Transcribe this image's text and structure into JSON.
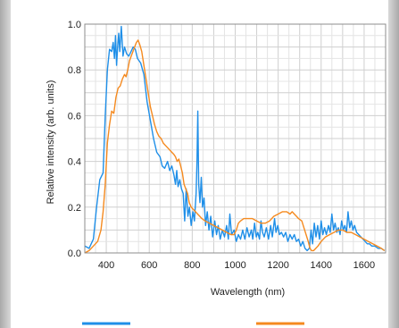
{
  "chart_data": {
    "type": "line",
    "title": "",
    "xlabel": "Wavelength (nm)",
    "ylabel": "Relative intensity (arb. units)",
    "xlim": [
      300,
      1700
    ],
    "ylim": [
      0,
      1.0
    ],
    "x_ticks": [
      400,
      600,
      800,
      1000,
      1200,
      1400,
      1600
    ],
    "y_ticks": [
      0.0,
      0.2,
      0.4,
      0.6,
      0.8,
      1.0
    ],
    "x_tick_labels": [
      "400",
      "600",
      "800",
      "1000",
      "1200",
      "1400",
      "1600"
    ],
    "y_tick_labels": [
      "0.0",
      "0.2",
      "0.4",
      "0.6",
      "0.8",
      "1.0"
    ],
    "grid": true,
    "legend": "bottom",
    "series": [
      {
        "color": "#1f8fe8",
        "points": [
          [
            300,
            0.03
          ],
          [
            320,
            0.02
          ],
          [
            340,
            0.06
          ],
          [
            355,
            0.2
          ],
          [
            370,
            0.32
          ],
          [
            385,
            0.35
          ],
          [
            395,
            0.6
          ],
          [
            405,
            0.8
          ],
          [
            415,
            0.89
          ],
          [
            425,
            0.88
          ],
          [
            432,
            0.92
          ],
          [
            438,
            0.85
          ],
          [
            443,
            0.95
          ],
          [
            448,
            0.82
          ],
          [
            453,
            0.9
          ],
          [
            458,
            0.96
          ],
          [
            463,
            0.88
          ],
          [
            470,
            0.99
          ],
          [
            478,
            0.86
          ],
          [
            485,
            0.9
          ],
          [
            495,
            0.87
          ],
          [
            505,
            0.86
          ],
          [
            515,
            0.88
          ],
          [
            525,
            0.9
          ],
          [
            535,
            0.89
          ],
          [
            545,
            0.85
          ],
          [
            560,
            0.83
          ],
          [
            575,
            0.78
          ],
          [
            590,
            0.66
          ],
          [
            605,
            0.58
          ],
          [
            620,
            0.5
          ],
          [
            635,
            0.44
          ],
          [
            650,
            0.42
          ],
          [
            660,
            0.38
          ],
          [
            672,
            0.37
          ],
          [
            685,
            0.4
          ],
          [
            695,
            0.36
          ],
          [
            705,
            0.38
          ],
          [
            715,
            0.34
          ],
          [
            722,
            0.3
          ],
          [
            728,
            0.36
          ],
          [
            734,
            0.29
          ],
          [
            742,
            0.32
          ],
          [
            750,
            0.28
          ],
          [
            758,
            0.26
          ],
          [
            765,
            0.14
          ],
          [
            772,
            0.28
          ],
          [
            780,
            0.16
          ],
          [
            787,
            0.2
          ],
          [
            795,
            0.12
          ],
          [
            803,
            0.18
          ],
          [
            810,
            0.14
          ],
          [
            818,
            0.26
          ],
          [
            822,
            0.4
          ],
          [
            826,
            0.62
          ],
          [
            830,
            0.3
          ],
          [
            836,
            0.22
          ],
          [
            842,
            0.33
          ],
          [
            848,
            0.2
          ],
          [
            855,
            0.24
          ],
          [
            862,
            0.12
          ],
          [
            870,
            0.18
          ],
          [
            878,
            0.1
          ],
          [
            886,
            0.16
          ],
          [
            895,
            0.07
          ],
          [
            905,
            0.14
          ],
          [
            913,
            0.08
          ],
          [
            921,
            0.12
          ],
          [
            930,
            0.06
          ],
          [
            940,
            0.1
          ],
          [
            950,
            0.07
          ],
          [
            960,
            0.12
          ],
          [
            968,
            0.06
          ],
          [
            975,
            0.17
          ],
          [
            983,
            0.08
          ],
          [
            995,
            0.1
          ],
          [
            1005,
            0.05
          ],
          [
            1015,
            0.08
          ],
          [
            1025,
            0.06
          ],
          [
            1035,
            0.1
          ],
          [
            1045,
            0.06
          ],
          [
            1055,
            0.11
          ],
          [
            1065,
            0.07
          ],
          [
            1075,
            0.1
          ],
          [
            1082,
            0.06
          ],
          [
            1090,
            0.13
          ],
          [
            1098,
            0.07
          ],
          [
            1105,
            0.09
          ],
          [
            1113,
            0.06
          ],
          [
            1120,
            0.14
          ],
          [
            1127,
            0.09
          ],
          [
            1135,
            0.07
          ],
          [
            1145,
            0.11
          ],
          [
            1155,
            0.06
          ],
          [
            1165,
            0.12
          ],
          [
            1173,
            0.07
          ],
          [
            1183,
            0.15
          ],
          [
            1190,
            0.09
          ],
          [
            1198,
            0.12
          ],
          [
            1206,
            0.08
          ],
          [
            1215,
            0.09
          ],
          [
            1225,
            0.07
          ],
          [
            1235,
            0.09
          ],
          [
            1245,
            0.05
          ],
          [
            1255,
            0.08
          ],
          [
            1265,
            0.06
          ],
          [
            1275,
            0.08
          ],
          [
            1285,
            0.05
          ],
          [
            1295,
            0.06
          ],
          [
            1305,
            0.03
          ],
          [
            1315,
            0.05
          ],
          [
            1325,
            0.02
          ],
          [
            1335,
            0.01
          ],
          [
            1345,
            0.02
          ],
          [
            1353,
            0.1
          ],
          [
            1360,
            0.04
          ],
          [
            1368,
            0.13
          ],
          [
            1376,
            0.07
          ],
          [
            1384,
            0.12
          ],
          [
            1392,
            0.06
          ],
          [
            1400,
            0.14
          ],
          [
            1408,
            0.08
          ],
          [
            1416,
            0.11
          ],
          [
            1424,
            0.08
          ],
          [
            1434,
            0.12
          ],
          [
            1442,
            0.09
          ],
          [
            1450,
            0.17
          ],
          [
            1458,
            0.1
          ],
          [
            1465,
            0.13
          ],
          [
            1473,
            0.09
          ],
          [
            1480,
            0.11
          ],
          [
            1488,
            0.08
          ],
          [
            1495,
            0.14
          ],
          [
            1503,
            0.1
          ],
          [
            1510,
            0.12
          ],
          [
            1518,
            0.09
          ],
          [
            1525,
            0.18
          ],
          [
            1533,
            0.11
          ],
          [
            1540,
            0.14
          ],
          [
            1548,
            0.1
          ],
          [
            1556,
            0.12
          ],
          [
            1565,
            0.09
          ],
          [
            1575,
            0.08
          ],
          [
            1585,
            0.07
          ],
          [
            1595,
            0.06
          ],
          [
            1605,
            0.05
          ],
          [
            1615,
            0.04
          ],
          [
            1625,
            0.04
          ],
          [
            1635,
            0.03
          ],
          [
            1650,
            0.03
          ],
          [
            1665,
            0.02
          ],
          [
            1680,
            0.02
          ],
          [
            1695,
            0.01
          ]
        ]
      },
      {
        "color": "#f58a1f",
        "points": [
          [
            300,
            0.0
          ],
          [
            320,
            0.01
          ],
          [
            340,
            0.03
          ],
          [
            360,
            0.05
          ],
          [
            375,
            0.1
          ],
          [
            385,
            0.18
          ],
          [
            395,
            0.3
          ],
          [
            405,
            0.48
          ],
          [
            415,
            0.56
          ],
          [
            425,
            0.62
          ],
          [
            435,
            0.61
          ],
          [
            445,
            0.68
          ],
          [
            455,
            0.72
          ],
          [
            465,
            0.73
          ],
          [
            475,
            0.76
          ],
          [
            485,
            0.78
          ],
          [
            492,
            0.77
          ],
          [
            500,
            0.8
          ],
          [
            508,
            0.84
          ],
          [
            516,
            0.86
          ],
          [
            524,
            0.88
          ],
          [
            532,
            0.9
          ],
          [
            540,
            0.92
          ],
          [
            548,
            0.93
          ],
          [
            556,
            0.91
          ],
          [
            565,
            0.88
          ],
          [
            575,
            0.82
          ],
          [
            585,
            0.76
          ],
          [
            595,
            0.7
          ],
          [
            605,
            0.64
          ],
          [
            615,
            0.6
          ],
          [
            625,
            0.56
          ],
          [
            635,
            0.53
          ],
          [
            645,
            0.51
          ],
          [
            655,
            0.5
          ],
          [
            665,
            0.48
          ],
          [
            675,
            0.47
          ],
          [
            685,
            0.46
          ],
          [
            695,
            0.45
          ],
          [
            705,
            0.44
          ],
          [
            715,
            0.43
          ],
          [
            722,
            0.42
          ],
          [
            730,
            0.4
          ],
          [
            738,
            0.41
          ],
          [
            746,
            0.38
          ],
          [
            754,
            0.35
          ],
          [
            762,
            0.3
          ],
          [
            770,
            0.28
          ],
          [
            778,
            0.26
          ],
          [
            786,
            0.22
          ],
          [
            795,
            0.2
          ],
          [
            805,
            0.19
          ],
          [
            815,
            0.18
          ],
          [
            825,
            0.17
          ],
          [
            835,
            0.16
          ],
          [
            845,
            0.15
          ],
          [
            860,
            0.14
          ],
          [
            880,
            0.13
          ],
          [
            900,
            0.12
          ],
          [
            920,
            0.11
          ],
          [
            940,
            0.1
          ],
          [
            960,
            0.09
          ],
          [
            980,
            0.08
          ],
          [
            995,
            0.08
          ],
          [
            1005,
            0.1
          ],
          [
            1015,
            0.13
          ],
          [
            1025,
            0.14
          ],
          [
            1040,
            0.15
          ],
          [
            1060,
            0.15
          ],
          [
            1080,
            0.15
          ],
          [
            1100,
            0.14
          ],
          [
            1120,
            0.13
          ],
          [
            1140,
            0.13
          ],
          [
            1160,
            0.14
          ],
          [
            1180,
            0.16
          ],
          [
            1200,
            0.17
          ],
          [
            1220,
            0.18
          ],
          [
            1240,
            0.18
          ],
          [
            1255,
            0.17
          ],
          [
            1265,
            0.18
          ],
          [
            1275,
            0.17
          ],
          [
            1285,
            0.16
          ],
          [
            1295,
            0.15
          ],
          [
            1310,
            0.14
          ],
          [
            1320,
            0.11
          ],
          [
            1330,
            0.08
          ],
          [
            1340,
            0.05
          ],
          [
            1348,
            0.02
          ],
          [
            1355,
            0.01
          ],
          [
            1365,
            0.01
          ],
          [
            1375,
            0.02
          ],
          [
            1385,
            0.03
          ],
          [
            1400,
            0.05
          ],
          [
            1420,
            0.07
          ],
          [
            1440,
            0.08
          ],
          [
            1460,
            0.09
          ],
          [
            1480,
            0.1
          ],
          [
            1500,
            0.1
          ],
          [
            1520,
            0.09
          ],
          [
            1540,
            0.09
          ],
          [
            1560,
            0.08
          ],
          [
            1580,
            0.07
          ],
          [
            1600,
            0.06
          ],
          [
            1620,
            0.05
          ],
          [
            1640,
            0.04
          ],
          [
            1660,
            0.03
          ],
          [
            1680,
            0.02
          ],
          [
            1695,
            0.01
          ]
        ]
      }
    ]
  }
}
